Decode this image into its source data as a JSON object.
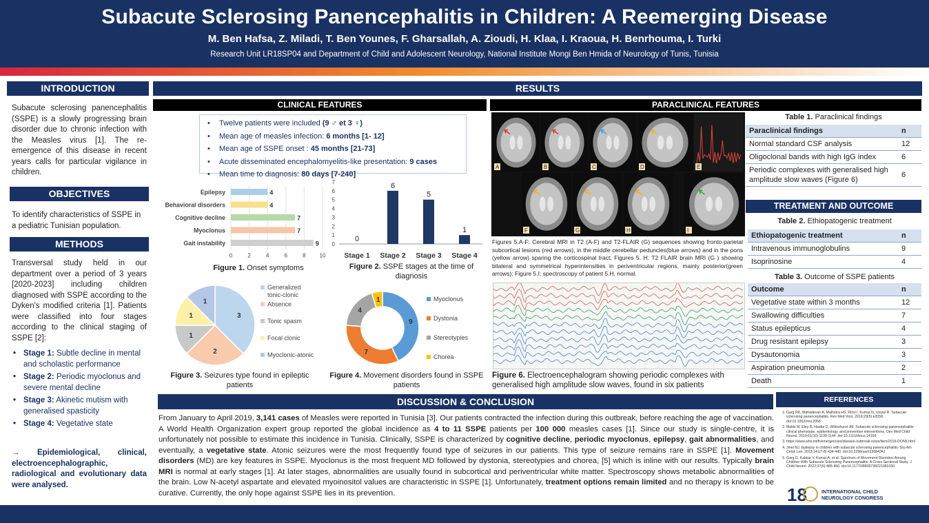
{
  "header": {
    "title": "Subacute Sclerosing Panencephalitis in Children: A Reemerging Disease",
    "authors": "M. Ben Hafsa, Z. Miladi, T. Ben Younes, F. Gharsallah, A. Zioudi, H. Klaa, I. Kraoua,  H. Benrhouma, I. Turki",
    "affiliation": "Research Unit LR18SP04 and Department of Child and Adolescent Neurology, National Institute Mongi Ben Hmida of Neurology of Tunis, Tunisia"
  },
  "introduction": {
    "heading": "INTRODUCTION",
    "text": "Subacute sclerosing panencephalitis (SSPE) is a slowly progressing brain disorder due to chronic infection with the Measles virus [1]. The re-emergence of this disease in recent years calls for particular vigilance in children."
  },
  "objectives": {
    "heading": "OBJECTIVES",
    "text": "To identify characteristics of SSPE in a pediatric Tunisian population."
  },
  "methods": {
    "heading": "METHODS",
    "text": "Transversal study held in our department over a period of 3 years [2020-2023] including children diagnosed with SSPE according to the Dyken's modified criteria [1].  Patients were classified into four stages according to the clinical staging of SSPE [2]:",
    "stages": [
      {
        "label": "Stage 1:",
        "text": " Subtle decline in mental and scholastic performance"
      },
      {
        "label": "Stage 2:",
        "text": " Periodic myoclonus and severe mental decline"
      },
      {
        "label": "Stage 3:",
        "text": " Akinetic mutism with generalised spasticity"
      },
      {
        "label": "Stage 4:",
        "text": " Vegetative state"
      }
    ],
    "conclusion": "→  Epidemiological, clinical, electroencephalographic, radiological and evolutionary data were analysed."
  },
  "results": {
    "heading": "RESULTS",
    "clinical_heading": "CLINICAL FEATURES",
    "paraclinical_heading": "PARACLINICAL FEATURES",
    "summary": [
      {
        "text": "Twelve patients were included ",
        "bold": "(9 ♂ et 3 ♀)"
      },
      {
        "text": "Mean age of measles infection: ",
        "bold": "6 months [1- 12]"
      },
      {
        "text": "Mean age of SSPE onset : ",
        "bold": "45 months [21-73]"
      },
      {
        "text": "Acute disseminated encephalomyelitis-like presentation: ",
        "bold": "9 cases"
      },
      {
        "text": "Mean time to diagnosis: ",
        "bold": "80 days [7-240]"
      }
    ]
  },
  "figures": {
    "fig1": {
      "label": "Figure 1.",
      "text": " Onset symptoms"
    },
    "fig2": {
      "label": "Figure 2.",
      "text": " SSPE stages at the time of diagnosis"
    },
    "fig3": {
      "label": "Figure 3.",
      "text": " Seizures type found in epileptic patients"
    },
    "fig4": {
      "label": "Figure 4.",
      "text": " Movement disorders found in SSPE patients"
    },
    "fig5": "Figures 5.A-F: Cerebral MRI in T2 (A-F) and T2-FLAIR (G) sequences showing fronto-parietal subcortical lesions (red arrows), in the middle cerebellar peduncles(blue arrows) and in the pons (yellow arrow) sparing the corticospinal tract; Figures 5. H: T2 FLAIR brain MRI (G ) showing bilateral and symmetrical hyperintensities in periventricular regions, mainly posterior(green arrows); Figure 5.I: spectroscopy of patient 5.H, normal.",
    "fig6": {
      "label": "Figure 6.",
      "text": " Electroencephalogram showing periodic complexes with generalised high amplitude slow waves, found in six patients"
    },
    "mri_letters": [
      "A",
      "B",
      "C",
      "D",
      "E",
      "F",
      "G",
      "H",
      "I"
    ]
  },
  "table1": {
    "caption_label": "Table 1.",
    "caption_text": " Paraclinical findings",
    "headers": [
      "Paraclinical findings",
      "n"
    ],
    "rows": [
      [
        "Normal standard CSF analysis",
        "12"
      ],
      [
        "Oligoclonal bands with high IgG index",
        "6"
      ],
      [
        "Periodic complexes with generalised high amplitude slow waves (Figure 6)",
        "6"
      ]
    ]
  },
  "treatment": {
    "heading": "TREATMENT AND OUTCOME",
    "table2": {
      "caption_label": "Table 2.",
      "caption_text": " Ethiopatogenic treatment",
      "headers": [
        "Ethiopatogenic treatment",
        "n"
      ],
      "rows": [
        [
          "Intravenous immunoglobulins",
          "9"
        ],
        [
          "Isoprinosine",
          "4"
        ]
      ]
    },
    "table3": {
      "caption_label": "Table 3.",
      "caption_text": " Outcome of SSPE patients",
      "headers": [
        "Outcome",
        "n"
      ],
      "rows": [
        [
          "Vegetative state within 3 months",
          "12"
        ],
        [
          "Swallowing difficulties",
          "7"
        ],
        [
          "Status epilepticus",
          "4"
        ],
        [
          "Drug resistant epilepsy",
          "3"
        ],
        [
          "Dysautonomia",
          "3"
        ],
        [
          "Aspiration pneumonia",
          "2"
        ],
        [
          "Death",
          "1"
        ]
      ]
    }
  },
  "discussion": {
    "heading": "DISCUSSION & CONCLUSION",
    "text_html": "From January to April 2019, <b>3,141 cases</b> of Measles were reported in Tunisia [3]. Our patients contracted the infection during this outbreak, before reaching the age of vaccination. A World Health Organization expert group reported the global incidence as <b>4 to 11 SSPE</b> patients per <b>100 000</b> measles cases [1]. Since our study is single-centre, it is unfortunately not possible to estimate this incidence in Tunisia. Clinically, SSPE is characterized by <b>cognitive decline</b>, <b>periodic myoclonus</b>, <b>epilepsy</b>, <b>gait abnormalities</b>, and eventually, a <b>vegetative state</b>. Atonic seizures were the most frequently found type of seizures in our patients. This type of seizure remains rare in SSPE [1]. <b>Movement disorders</b> (MD) are key features in SSPE. Myoclonus is the most frequent MD followed by dystonia, stereotypies and chorea, [5] which is inline with our results. Typically <b>brain MRI</b> is normal at early stages [1]. At later stages, abnormalities are usually found in subcortical and periventricular white matter.  Spectroscopy shows metabolic abnormalities of the brain. Low N-acetyl aspartate and elevated myoinositol values are characteristic in SSPE [1]. Unfortunately, <b>treatment options remain limited</b> and no therapy is known to be curative. Currently, the only hope against SSPE lies in its prevention."
  },
  "references": {
    "heading": "REFERENCES",
    "items": [
      "Garg RK, Mahadevan A, Malhotra HS, Rizvi I, Kumar N, Uniyal R. Subacute sclerosing panencephalitis. Rev Med Virol. 2019;29(5):e2058. doi:10.1002/rmv.2058",
      "Mekki M, Eley B, Hardie D, Wilmshurst JM. Subacute sclerosing panencephalitis: clinical phenotype, epidemiology, and preventive interventions. Dev Med Child Neurol. 2019;61(10):1139-1144. doi:10.1111/dmcn.14166",
      "https://www.who.int/fr/emergencies/disease-outbreak-news/item/2019-DON5.html",
      "Jmel NJ. Epilepsy in children with subacute sclerosing panencephalitis. Srp Arh Celok Lek. 2013;141(7-8):434-440. doi:10.2298/sarh1308434J",
      "Garg D, Kakkar V, Kumar A, et al. Spectrum of Movement Disorders Among Children With Subacute Sclerosing Panencephalitis: A Cross-Sectional Study. J Child Neurol. 2022;37(6):485-490. doi:10.1177/08830738221083150"
    ],
    "logo_text": "18th INTERNATIONAL CHILD NEUROLOGY CONGRESS"
  },
  "chart_data": [
    {
      "type": "bar",
      "orientation": "horizontal",
      "categories": [
        "Epilepsy",
        "Behavioral disorders",
        "Cognitive decline",
        "Myoclonus",
        "Gait instability"
      ],
      "values": [
        4,
        4,
        7,
        7,
        9
      ],
      "colors": [
        "#a9cfe8",
        "#f7e08d",
        "#b5d9a8",
        "#f5c7a8",
        "#cfcfcf"
      ],
      "xlim": [
        0,
        10
      ],
      "xticks": [
        0,
        2,
        4,
        6,
        8,
        10
      ]
    },
    {
      "type": "bar",
      "categories": [
        "Stage 1",
        "Stage 2",
        "Stage 3",
        "Stage 4"
      ],
      "values": [
        0,
        6,
        5,
        1
      ],
      "color": "#1f3864",
      "ylim": [
        0,
        7
      ],
      "yticks": [
        0,
        1,
        2,
        3,
        4,
        5,
        6,
        7
      ]
    },
    {
      "type": "pie",
      "labels": [
        "Generalized tonic-clonic",
        "Absence",
        "Tonic spasm",
        "Focal clonic",
        "Myoclonic-atonic"
      ],
      "values": [
        3,
        2,
        1,
        1,
        1
      ],
      "colors": [
        "#bcd6ed",
        "#f8cbad",
        "#c9c9c9",
        "#fff0a8",
        "#b4c7e7"
      ]
    },
    {
      "type": "pie",
      "donut": true,
      "labels": [
        "Myoclonus",
        "Dystonia",
        "Stereotypies",
        "Chorea"
      ],
      "values": [
        9,
        7,
        4,
        1
      ],
      "colors": [
        "#5b9bd5",
        "#ed7d31",
        "#a5a5a5",
        "#ffc000"
      ]
    }
  ]
}
